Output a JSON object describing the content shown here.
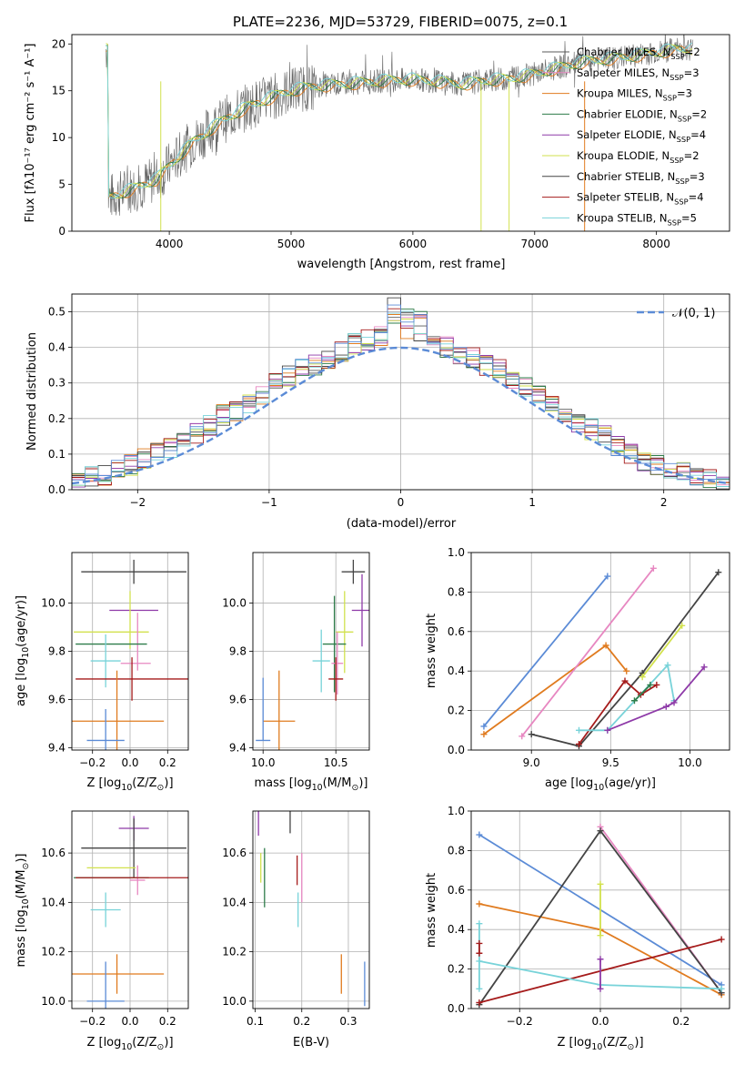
{
  "figure_title": "PLATE=2236, MJD=53729, FIBERID=0075, z=0.1",
  "colors": {
    "Chabrier MILES": "#5a5a5a",
    "Salpeter MILES": "#e787c1",
    "Kroupa MILES": "#e07b1f",
    "Chabrier ELODIE": "#2e7d4a",
    "Salpeter ELODIE": "#8e3aa8",
    "Kroupa ELODIE": "#d2e14d",
    "Chabrier STELIB": "#444444",
    "Salpeter STELIB": "#a51b1b",
    "Kroupa STELIB": "#78d3d9",
    "blue": "#5b8bd6"
  },
  "chart_data": [
    {
      "id": "spectrum",
      "type": "line",
      "title": "PLATE=2236, MJD=53729, FIBERID=0075, z=0.1",
      "xlabel": "wavelength [Angstrom, rest frame]",
      "ylabel": "Flux [f_λ 10^-17 erg cm^-2 s^-1 A^-1]",
      "xlim": [
        3200,
        8600
      ],
      "ylim": [
        0,
        21
      ],
      "xticks": [
        4000,
        5000,
        6000,
        7000,
        8000
      ],
      "yticks": [
        0,
        5,
        10,
        15,
        20
      ],
      "grid": false,
      "legend_position": "right",
      "x": [
        3500,
        3700,
        3900,
        4000,
        4100,
        4200,
        4300,
        4400,
        4500,
        4600,
        4700,
        4800,
        4900,
        5000,
        5100,
        5200,
        5400,
        5600,
        5800,
        6000,
        6200,
        6400,
        6600,
        6800,
        7000,
        7200,
        7400,
        7600,
        7800,
        8000,
        8200
      ],
      "data_flux": [
        3.6,
        4.5,
        5.6,
        7.0,
        8.3,
        9.6,
        10.5,
        11.5,
        12.3,
        13.0,
        13.6,
        14.1,
        14.6,
        15.0,
        15.3,
        15.5,
        15.7,
        15.9,
        16.1,
        16.2,
        16.0,
        15.7,
        16.1,
        16.3,
        16.8,
        17.5,
        18.1,
        18.4,
        18.7,
        19.1,
        19.5
      ],
      "series": [
        {
          "name": "Chabrier MILES, N_SSP=2",
          "label_main": "Chabrier MILES, N",
          "label_sub": "SSP",
          "label_tail": "=2"
        },
        {
          "name": "Salpeter MILES, N_SSP=3",
          "label_main": "Salpeter MILES, N",
          "label_sub": "SSP",
          "label_tail": "=3"
        },
        {
          "name": "Kroupa MILES, N_SSP=3",
          "label_main": "Kroupa MILES, N",
          "label_sub": "SSP",
          "label_tail": "=3"
        },
        {
          "name": "Chabrier ELODIE, N_SSP=2",
          "label_main": "Chabrier ELODIE, N",
          "label_sub": "SSP",
          "label_tail": "=2"
        },
        {
          "name": "Salpeter ELODIE, N_SSP=4",
          "label_main": "Salpeter ELODIE, N",
          "label_sub": "SSP",
          "label_tail": "=4"
        },
        {
          "name": "Kroupa ELODIE, N_SSP=2",
          "label_main": "Kroupa ELODIE, N",
          "label_sub": "SSP",
          "label_tail": "=2"
        },
        {
          "name": "Chabrier STELIB, N_SSP=3",
          "label_main": "Chabrier STELIB, N",
          "label_sub": "SSP",
          "label_tail": "=3"
        },
        {
          "name": "Salpeter STELIB, N_SSP=4",
          "label_main": "Salpeter STELIB, N",
          "label_sub": "SSP",
          "label_tail": "=4"
        },
        {
          "name": "Kroupa STELIB, N_SSP=5",
          "label_main": "Kroupa STELIB, N",
          "label_sub": "SSP",
          "label_tail": "=5"
        }
      ]
    },
    {
      "id": "residuals",
      "type": "area",
      "xlabel": "(data-model)/error",
      "ylabel": "Normed distribution",
      "xlim": [
        -2.5,
        2.5
      ],
      "ylim": [
        0,
        0.55
      ],
      "xticks": [
        -2,
        -1,
        0,
        1,
        2
      ],
      "yticks": [
        0.0,
        0.1,
        0.2,
        0.3,
        0.4,
        0.5
      ],
      "grid": true,
      "legend_position": "top-right",
      "bin_width": 0.1,
      "x": [
        -2.5,
        -2.4,
        -2.3,
        -2.2,
        -2.1,
        -2.0,
        -1.9,
        -1.8,
        -1.7,
        -1.6,
        -1.5,
        -1.4,
        -1.3,
        -1.2,
        -1.1,
        -1.0,
        -0.9,
        -0.8,
        -0.7,
        -0.6,
        -0.5,
        -0.4,
        -0.3,
        -0.2,
        -0.1,
        0.0,
        0.1,
        0.2,
        0.3,
        0.4,
        0.5,
        0.6,
        0.7,
        0.8,
        0.9,
        1.0,
        1.1,
        1.2,
        1.3,
        1.4,
        1.5,
        1.6,
        1.7,
        1.8,
        1.9,
        2.0,
        2.1,
        2.2,
        2.3,
        2.4
      ],
      "histogram_series": [
        "Chabrier MILES",
        "Salpeter MILES",
        "Kroupa MILES",
        "Chabrier ELODIE",
        "Salpeter ELODIE",
        "Kroupa ELODIE",
        "Chabrier STELIB",
        "Salpeter STELIB",
        "Kroupa STELIB"
      ],
      "hist_values": [
        0.03,
        0.04,
        0.04,
        0.06,
        0.07,
        0.09,
        0.11,
        0.12,
        0.14,
        0.16,
        0.18,
        0.21,
        0.22,
        0.24,
        0.27,
        0.3,
        0.32,
        0.34,
        0.35,
        0.37,
        0.39,
        0.41,
        0.42,
        0.43,
        0.45,
        0.44,
        0.42,
        0.41,
        0.4,
        0.38,
        0.37,
        0.35,
        0.34,
        0.31,
        0.29,
        0.27,
        0.24,
        0.21,
        0.19,
        0.17,
        0.15,
        0.12,
        0.1,
        0.08,
        0.07,
        0.05,
        0.05,
        0.04,
        0.03,
        0.02
      ],
      "gaussian": {
        "name": "N(0,1)",
        "label_main": "𝒩(0, 1)",
        "style": "dashed"
      }
    },
    {
      "id": "age_vs_Z",
      "type": "scatter",
      "xlabel": "Z [log10(Z/Z☉)]",
      "xlabel_main": "Z [log",
      "xlabel_sub": "10",
      "xlabel_tail": "(Z/Z",
      "ylabel_main": "age  [log",
      "ylabel_sub": "10",
      "ylabel_tail": "(age/yr)]",
      "xlim": [
        -0.31,
        0.31
      ],
      "ylim": [
        9.39,
        10.21
      ],
      "xticks": [
        -0.2,
        0.0,
        0.2
      ],
      "xticklabels": [
        "−0.2",
        "0.0",
        "0.2"
      ],
      "yticks": [
        9.4,
        9.6,
        9.8,
        10.0
      ],
      "yticklabels": [
        "9.4",
        "9.6",
        "9.8",
        "10.0"
      ],
      "grid": true,
      "points": [
        {
          "series": "Chabrier STELIB",
          "x": 0.02,
          "y": 10.13,
          "xerr": 0.28,
          "yerr": 0.05
        },
        {
          "series": "Salpeter ELODIE",
          "x": 0.02,
          "y": 9.97,
          "xerr": 0.13,
          "yerr": 0.0
        },
        {
          "series": "Kroupa ELODIE",
          "x": 0.0,
          "y": 9.93,
          "xerr": 0.0,
          "yerr": 0.12
        },
        {
          "series": "Kroupa ELODIE",
          "x": -0.1,
          "y": 9.88,
          "xerr": 0.2,
          "yerr": 0.0
        },
        {
          "series": "Salpeter MILES",
          "x": 0.04,
          "y": 9.84,
          "xerr": 0.0,
          "yerr": 0.12
        },
        {
          "series": "Chabrier ELODIE",
          "x": -0.1,
          "y": 9.83,
          "xerr": 0.19,
          "yerr": 0.0
        },
        {
          "series": "Kroupa STELIB",
          "x": -0.13,
          "y": 9.76,
          "xerr": 0.08,
          "yerr": 0.11
        },
        {
          "series": "Salpeter MILES",
          "x": 0.03,
          "y": 9.75,
          "xerr": 0.08,
          "yerr": 0.0
        },
        {
          "series": "Salpeter STELIB",
          "x": 0.01,
          "y": 9.685,
          "xerr": 0.3,
          "yerr": 0.09
        },
        {
          "series": "Kroupa MILES",
          "x": -0.07,
          "y": 9.51,
          "xerr": 0.25,
          "yerr": 0.21
        },
        {
          "series": "blue",
          "x": -0.3,
          "y": 9.43,
          "xerr": 0.0,
          "yerr": 0.0
        },
        {
          "series": "blue",
          "x": -0.13,
          "y": 9.43,
          "xerr": 0.1,
          "yerr": 0.13
        }
      ]
    },
    {
      "id": "age_vs_mass",
      "type": "scatter",
      "xlabel_main": "mass [log",
      "xlabel_sub": "10",
      "xlabel_tail": "(M/M",
      "xlim": [
        9.93,
        10.73
      ],
      "ylim": [
        9.39,
        10.21
      ],
      "xticks": [
        10.0,
        10.5
      ],
      "xticklabels": [
        "10.0",
        "10.5"
      ],
      "yticks": [
        9.4,
        9.6,
        9.8,
        10.0
      ],
      "yticklabels": [
        "9.4",
        "9.6",
        "9.8",
        "10.0"
      ],
      "grid": true,
      "points": [
        {
          "series": "Chabrier STELIB",
          "x": 10.62,
          "y": 10.13,
          "xerr": 0.08,
          "yerr": 0.05
        },
        {
          "series": "Salpeter ELODIE",
          "x": 10.68,
          "y": 9.97,
          "xerr": 0.07,
          "yerr": 0.15
        },
        {
          "series": "Kroupa ELODIE",
          "x": 10.56,
          "y": 9.88,
          "xerr": 0.06,
          "yerr": 0.17
        },
        {
          "series": "Chabrier ELODIE",
          "x": 10.49,
          "y": 9.83,
          "xerr": 0.08,
          "yerr": 0.2
        },
        {
          "series": "Kroupa STELIB",
          "x": 10.4,
          "y": 9.76,
          "xerr": 0.06,
          "yerr": 0.13
        },
        {
          "series": "Salpeter MILES",
          "x": 10.51,
          "y": 9.75,
          "xerr": 0.04,
          "yerr": 0.13
        },
        {
          "series": "Salpeter STELIB",
          "x": 10.5,
          "y": 9.685,
          "xerr": 0.05,
          "yerr": 0.09
        },
        {
          "series": "Kroupa MILES",
          "x": 10.11,
          "y": 9.51,
          "xerr": 0.11,
          "yerr": 0.21
        },
        {
          "series": "blue",
          "x": 10.0,
          "y": 9.56,
          "xerr": 0.0,
          "yerr": 0.13
        },
        {
          "series": "blue",
          "x": 10.0,
          "y": 9.43,
          "xerr": 0.05,
          "yerr": 0.0
        }
      ]
    },
    {
      "id": "massweight_vs_age",
      "type": "line",
      "xlabel_main": "age  [log",
      "xlabel_sub": "10",
      "xlabel_tail": "(age/yr)]",
      "ylabel": "mass weight",
      "xlim": [
        8.62,
        10.25
      ],
      "ylim": [
        0.0,
        1.0
      ],
      "xticks": [
        9.0,
        9.5,
        10.0
      ],
      "xticklabels": [
        "9.0",
        "9.5",
        "10.0"
      ],
      "yticks": [
        0.0,
        0.2,
        0.4,
        0.6,
        0.8,
        1.0
      ],
      "yticklabels": [
        "0.0",
        "0.2",
        "0.4",
        "0.6",
        "0.8",
        "1.0"
      ],
      "grid": true,
      "series": [
        {
          "series": "blue",
          "x": [
            8.7,
            9.48
          ],
          "y": [
            0.12,
            0.88
          ]
        },
        {
          "series": "Kroupa MILES",
          "x": [
            8.7,
            9.47,
            9.6
          ],
          "y": [
            0.08,
            0.53,
            0.4
          ]
        },
        {
          "series": "Salpeter MILES",
          "x": [
            8.94,
            9.77
          ],
          "y": [
            0.07,
            0.92
          ]
        },
        {
          "series": "Chabrier STELIB",
          "x": [
            9.0,
            9.3,
            9.7,
            10.18
          ],
          "y": [
            0.08,
            0.02,
            0.39,
            0.9
          ]
        },
        {
          "series": "Kroupa ELODIE",
          "x": [
            9.7,
            9.95
          ],
          "y": [
            0.37,
            0.63
          ]
        },
        {
          "series": "Salpeter STELIB",
          "x": [
            9.3,
            9.59,
            9.69,
            9.79
          ],
          "y": [
            0.03,
            0.35,
            0.28,
            0.33
          ]
        },
        {
          "series": "Kroupa STELIB",
          "x": [
            9.3,
            9.48,
            9.86,
            9.9
          ],
          "y": [
            0.1,
            0.1,
            0.43,
            0.25
          ]
        },
        {
          "series": "Salpeter ELODIE",
          "x": [
            9.48,
            9.85,
            9.9,
            10.09
          ],
          "y": [
            0.1,
            0.22,
            0.24,
            0.42
          ]
        },
        {
          "series": "Chabrier ELODIE",
          "x": [
            9.65,
            9.75
          ],
          "y": [
            0.25,
            0.33
          ]
        }
      ]
    },
    {
      "id": "mass_vs_Z",
      "type": "scatter",
      "xlabel_main": "Z [log",
      "xlabel_sub": "10",
      "xlabel_tail": "(Z/Z",
      "ylabel_main": "mass [log",
      "ylabel_sub": "10",
      "ylabel_tail": "(M/M",
      "xlim": [
        -0.31,
        0.31
      ],
      "ylim": [
        9.97,
        10.77
      ],
      "xticks": [
        -0.2,
        0.0,
        0.2
      ],
      "xticklabels": [
        "−0.2",
        "0.0",
        "0.2"
      ],
      "yticks": [
        10.0,
        10.2,
        10.4,
        10.6
      ],
      "yticklabels": [
        "10.0",
        "10.2",
        "10.4",
        "10.6"
      ],
      "grid": true,
      "points": [
        {
          "series": "Salpeter ELODIE",
          "x": 0.02,
          "y": 10.7,
          "xerr": 0.08,
          "yerr": 0.05
        },
        {
          "series": "Chabrier STELIB",
          "x": 0.02,
          "y": 10.62,
          "xerr": 0.28,
          "yerr": 0.12
        },
        {
          "series": "Kroupa ELODIE",
          "x": -0.1,
          "y": 10.54,
          "xerr": 0.13,
          "yerr": 0.0
        },
        {
          "series": "Chabrier ELODIE",
          "x": -0.1,
          "y": 10.5,
          "xerr": 0.2,
          "yerr": 0.0
        },
        {
          "series": "Salpeter MILES",
          "x": 0.04,
          "y": 10.49,
          "xerr": 0.04,
          "yerr": 0.06
        },
        {
          "series": "Salpeter STELIB",
          "x": 0.01,
          "y": 10.5,
          "xerr": 0.3,
          "yerr": 0.0
        },
        {
          "series": "Kroupa STELIB",
          "x": -0.13,
          "y": 10.37,
          "xerr": 0.08,
          "yerr": 0.07
        },
        {
          "series": "Kroupa MILES",
          "x": -0.07,
          "y": 10.11,
          "xerr": 0.25,
          "yerr": 0.08
        },
        {
          "series": "blue",
          "x": -0.13,
          "y": 10.0,
          "xerr": 0.1,
          "yerr": 0.16
        }
      ]
    },
    {
      "id": "mass_vs_ebv",
      "type": "scatter",
      "xlabel": "E(B-V)",
      "xlim": [
        0.095,
        0.345
      ],
      "ylim": [
        9.97,
        10.77
      ],
      "xticks": [
        0.1,
        0.2,
        0.3
      ],
      "xticklabels": [
        "0.1",
        "0.2",
        "0.3"
      ],
      "yticks": [
        10.0,
        10.2,
        10.4,
        10.6
      ],
      "yticklabels": [
        "10.0",
        "10.2",
        "10.4",
        "10.6"
      ],
      "grid": true,
      "points": [
        {
          "series": "Salpeter ELODIE",
          "x": 0.107,
          "y": 10.73,
          "xerr": 0.0,
          "yerr": 0.06
        },
        {
          "series": "Kroupa ELODIE",
          "x": 0.112,
          "y": 10.54,
          "xerr": 0.0,
          "yerr": 0.06
        },
        {
          "series": "Chabrier ELODIE",
          "x": 0.12,
          "y": 10.5,
          "xerr": 0.0,
          "yerr": 0.12
        },
        {
          "series": "Chabrier STELIB",
          "x": 0.175,
          "y": 10.74,
          "xerr": 0.0,
          "yerr": 0.06
        },
        {
          "series": "Salpeter STELIB",
          "x": 0.19,
          "y": 10.53,
          "xerr": 0.0,
          "yerr": 0.06
        },
        {
          "series": "Kroupa STELIB",
          "x": 0.192,
          "y": 10.37,
          "xerr": 0.0,
          "yerr": 0.07
        },
        {
          "series": "Salpeter MILES",
          "x": 0.2,
          "y": 10.5,
          "xerr": 0.0,
          "yerr": 0.1
        },
        {
          "series": "Kroupa MILES",
          "x": 0.285,
          "y": 10.11,
          "xerr": 0.0,
          "yerr": 0.08
        },
        {
          "series": "blue",
          "x": 0.335,
          "y": 10.07,
          "xerr": 0.0,
          "yerr": 0.09
        }
      ]
    },
    {
      "id": "massweight_vs_Z",
      "type": "line",
      "xlabel_main": "Z [log",
      "xlabel_sub": "10",
      "xlabel_tail": "(Z/Z",
      "ylabel": "mass weight",
      "xlim": [
        -0.32,
        0.32
      ],
      "ylim": [
        0.0,
        1.0
      ],
      "xticks": [
        -0.2,
        0.0,
        0.2
      ],
      "xticklabels": [
        "−0.2",
        "0.0",
        "0.2"
      ],
      "yticks": [
        0.0,
        0.2,
        0.4,
        0.6,
        0.8,
        1.0
      ],
      "yticklabels": [
        "0.0",
        "0.2",
        "0.4",
        "0.6",
        "0.8",
        "1.0"
      ],
      "grid": true,
      "series": [
        {
          "series": "blue",
          "x": [
            -0.3,
            0.3
          ],
          "y": [
            0.88,
            0.12
          ]
        },
        {
          "series": "Kroupa MILES",
          "x": [
            -0.3,
            0.0,
            0.3
          ],
          "y": [
            0.53,
            0.4,
            0.07
          ]
        },
        {
          "series": "Salpeter MILES",
          "x": [
            0.0,
            0.3
          ],
          "y": [
            0.92,
            0.08
          ]
        },
        {
          "series": "Chabrier STELIB",
          "x": [
            -0.3,
            0.0,
            0.3
          ],
          "y": [
            0.02,
            0.9,
            0.08
          ]
        },
        {
          "series": "Salpeter STELIB",
          "x": [
            -0.3,
            0.3
          ],
          "y": [
            0.03,
            0.35
          ]
        },
        {
          "series": "Kroupa STELIB",
          "x": [
            -0.3,
            0.0,
            0.3
          ],
          "y": [
            0.24,
            0.12,
            0.1
          ]
        },
        {
          "series": "Kroupa ELODIE",
          "x": [
            0.0,
            0.0
          ],
          "y": [
            0.37,
            0.63
          ]
        },
        {
          "series": "Salpeter ELODIE",
          "x": [
            0.0,
            0.0
          ],
          "y": [
            0.1,
            0.25
          ]
        },
        {
          "series": "Kroupa STELIB",
          "x": [
            -0.3,
            -0.3
          ],
          "y": [
            0.1,
            0.43
          ]
        },
        {
          "series": "Salpeter STELIB",
          "x": [
            -0.3,
            -0.3
          ],
          "y": [
            0.28,
            0.33
          ]
        }
      ]
    }
  ]
}
